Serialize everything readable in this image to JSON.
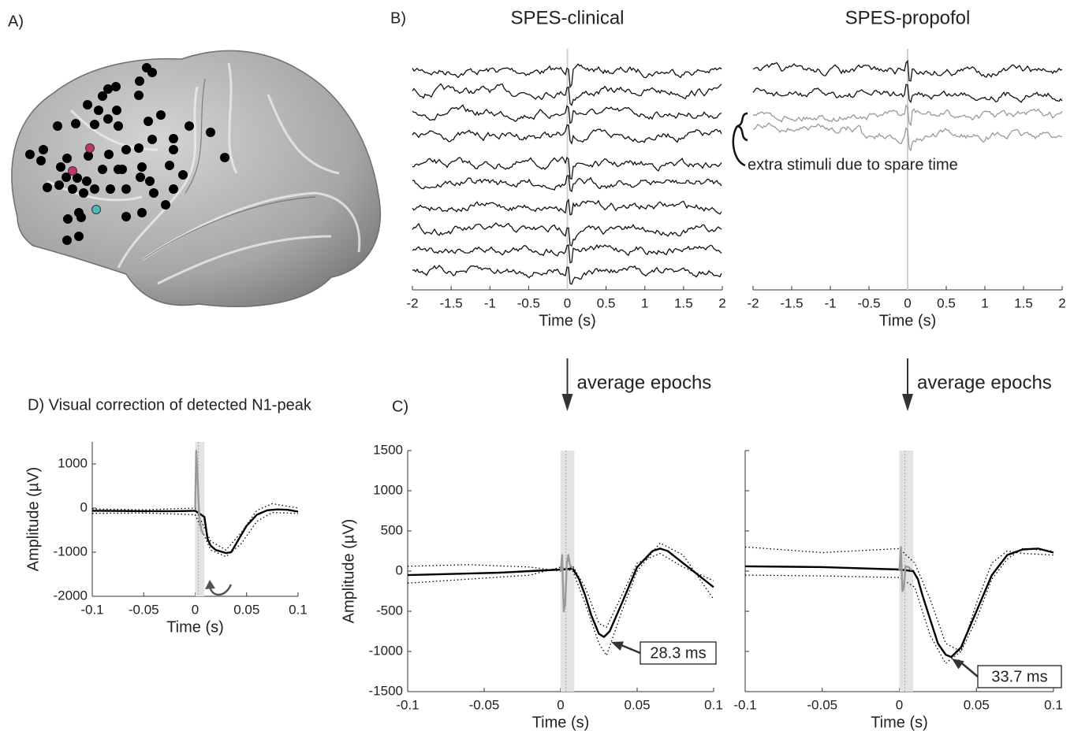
{
  "chart_data": [
    {
      "type": "raw",
      "panel_label": "B)",
      "title": "SPES-clinical",
      "xlabel": "Time (s)",
      "xlim": [
        -2,
        2
      ],
      "xticks": [
        -2,
        -1.5,
        -1,
        -0.5,
        0,
        0.5,
        1,
        1.5,
        2
      ],
      "annotation": "average epochs"
    },
    {
      "type": "raw",
      "title": "SPES-propofol",
      "xlabel": "Time (s)",
      "xlim": [
        -2,
        2
      ],
      "xticks": [
        -2,
        -1.5,
        -1,
        -0.5,
        0,
        0.5,
        1,
        1.5,
        2
      ],
      "annotation": "average epochs",
      "note": "extra stimuli due to spare time"
    },
    {
      "type": "line",
      "panel_label": "C)",
      "xlabel": "Time (s)",
      "ylabel": "Amplitude (µV)",
      "xlim": [
        -0.1,
        0.1
      ],
      "xticks": [
        -0.1,
        -0.05,
        0,
        0.05,
        0.1
      ],
      "ylim": [
        -1500,
        1500
      ],
      "yticks": [
        -1500,
        -1000,
        -500,
        0,
        500,
        1000,
        1500
      ],
      "show_ytick_labels": true,
      "shaded_x": [
        0,
        0.009
      ],
      "annotation": "28.3 ms",
      "series": [
        {
          "color": "#000000",
          "style": "solid",
          "x": [
            -0.1,
            -0.08,
            -0.06,
            -0.04,
            -0.02,
            0,
            0.008,
            0.012,
            0.016,
            0.02,
            0.025,
            0.0283,
            0.032,
            0.04,
            0.05,
            0.06,
            0.065,
            0.07,
            0.08,
            0.09,
            0.1
          ],
          "values": [
            -50,
            -40,
            -30,
            -20,
            0,
            20,
            30,
            -100,
            -300,
            -550,
            -780,
            -820,
            -750,
            -400,
            50,
            250,
            280,
            250,
            100,
            -50,
            -200
          ]
        },
        {
          "color": "#999999",
          "style": "solid",
          "x": [
            0,
            0.001,
            0.002,
            0.003,
            0.004,
            0.005,
            0.006,
            0.008
          ],
          "values": [
            0,
            200,
            -500,
            -400,
            100,
            200,
            80,
            30
          ]
        },
        {
          "color": "#000000",
          "style": "dotted",
          "x": [
            -0.1,
            -0.06,
            -0.02,
            0,
            0.008,
            0.016,
            0.025,
            0.03,
            0.04,
            0.05,
            0.065,
            0.08,
            0.1
          ],
          "values": [
            -150,
            -100,
            -50,
            50,
            0,
            -400,
            -900,
            -1050,
            -500,
            0,
            350,
            200,
            -350
          ]
        },
        {
          "color": "#000000",
          "style": "dotted",
          "x": [
            -0.1,
            -0.06,
            -0.02,
            0,
            0.008,
            0.016,
            0.025,
            0.03,
            0.04,
            0.05,
            0.065,
            0.08,
            0.1
          ],
          "values": [
            60,
            80,
            50,
            0,
            60,
            -200,
            -650,
            -700,
            -300,
            100,
            220,
            50,
            -120
          ]
        }
      ]
    },
    {
      "type": "line",
      "xlim": [
        -0.1,
        0.1
      ],
      "xticks": [
        -0.1,
        -0.05,
        0,
        0.05,
        0.1
      ],
      "xlabel": "Time (s)",
      "ylim": [
        -1500,
        1500
      ],
      "yticks": [
        -1500,
        -1000,
        -500,
        0,
        500,
        1000,
        1500
      ],
      "show_ytick_labels": false,
      "shaded_x": [
        0,
        0.009
      ],
      "annotation": "33.7 ms",
      "series": [
        {
          "color": "#000000",
          "style": "solid",
          "x": [
            -0.1,
            -0.05,
            0,
            0.009,
            0.012,
            0.015,
            0.02,
            0.025,
            0.03,
            0.0337,
            0.04,
            0.05,
            0.06,
            0.07,
            0.08,
            0.09,
            0.1
          ],
          "values": [
            60,
            50,
            20,
            0,
            -100,
            -300,
            -600,
            -900,
            -1040,
            -1070,
            -950,
            -500,
            -50,
            200,
            270,
            280,
            230
          ]
        },
        {
          "color": "#999999",
          "style": "solid",
          "x": [
            0,
            0.001,
            0.002,
            0.003,
            0.004,
            0.006,
            0.008
          ],
          "values": [
            0,
            300,
            -250,
            -200,
            60,
            50,
            10
          ]
        },
        {
          "color": "#000000",
          "style": "dotted",
          "x": [
            -0.1,
            -0.05,
            0,
            0.01,
            0.02,
            0.03,
            0.04,
            0.05,
            0.06,
            0.07,
            0.08,
            0.1
          ],
          "values": [
            300,
            230,
            280,
            100,
            -350,
            -900,
            -1000,
            -600,
            -100,
            150,
            280,
            250
          ]
        },
        {
          "color": "#000000",
          "style": "dotted",
          "x": [
            -0.1,
            -0.05,
            0,
            0.01,
            0.02,
            0.03,
            0.04,
            0.05,
            0.06,
            0.07,
            0.08,
            0.1
          ],
          "values": [
            -50,
            -60,
            -80,
            -200,
            -800,
            -1150,
            -1000,
            -400,
            100,
            250,
            220,
            200
          ]
        }
      ]
    },
    {
      "type": "line",
      "title": "D) Visual correction of detected N1-peak",
      "xlabel": "Time (s)",
      "ylabel": "Amplitude (µV)",
      "xlim": [
        -0.1,
        0.1
      ],
      "xticks": [
        -0.1,
        -0.05,
        0,
        0.05,
        0.1
      ],
      "ylim": [
        -2000,
        1500
      ],
      "yticks": [
        -2000,
        -1000,
        0,
        1000
      ],
      "show_ytick_labels": true,
      "shaded_x": [
        0,
        0.009
      ],
      "series": [
        {
          "color": "#000000",
          "style": "solid",
          "x": [
            -0.1,
            -0.05,
            -0.02,
            0,
            0.009,
            0.012,
            0.015,
            0.02,
            0.03,
            0.035,
            0.04,
            0.05,
            0.06,
            0.07,
            0.08,
            0.09,
            0.1
          ],
          "values": [
            -60,
            -70,
            -70,
            -60,
            -200,
            -700,
            -850,
            -950,
            -1020,
            -1000,
            -800,
            -400,
            -150,
            -50,
            -30,
            -40,
            -80
          ]
        },
        {
          "color": "#999999",
          "style": "solid",
          "x": [
            0,
            0.001,
            0.002,
            0.003,
            0.004,
            0.006,
            0.008
          ],
          "values": [
            0,
            1300,
            900,
            300,
            -200,
            -500,
            -600
          ]
        },
        {
          "color": "#000000",
          "style": "dotted",
          "x": [
            -0.1,
            -0.05,
            0,
            0.015,
            0.03,
            0.045,
            0.06,
            0.075,
            0.1
          ],
          "values": [
            -20,
            -40,
            0,
            -750,
            -950,
            -550,
            -50,
            100,
            0
          ]
        },
        {
          "color": "#000000",
          "style": "dotted",
          "x": [
            -0.1,
            -0.05,
            0,
            0.015,
            0.03,
            0.045,
            0.06,
            0.075,
            0.1
          ],
          "values": [
            -120,
            -110,
            -150,
            -950,
            -1100,
            -800,
            -300,
            -100,
            -120
          ]
        }
      ]
    }
  ],
  "panel_a_label": "A)"
}
